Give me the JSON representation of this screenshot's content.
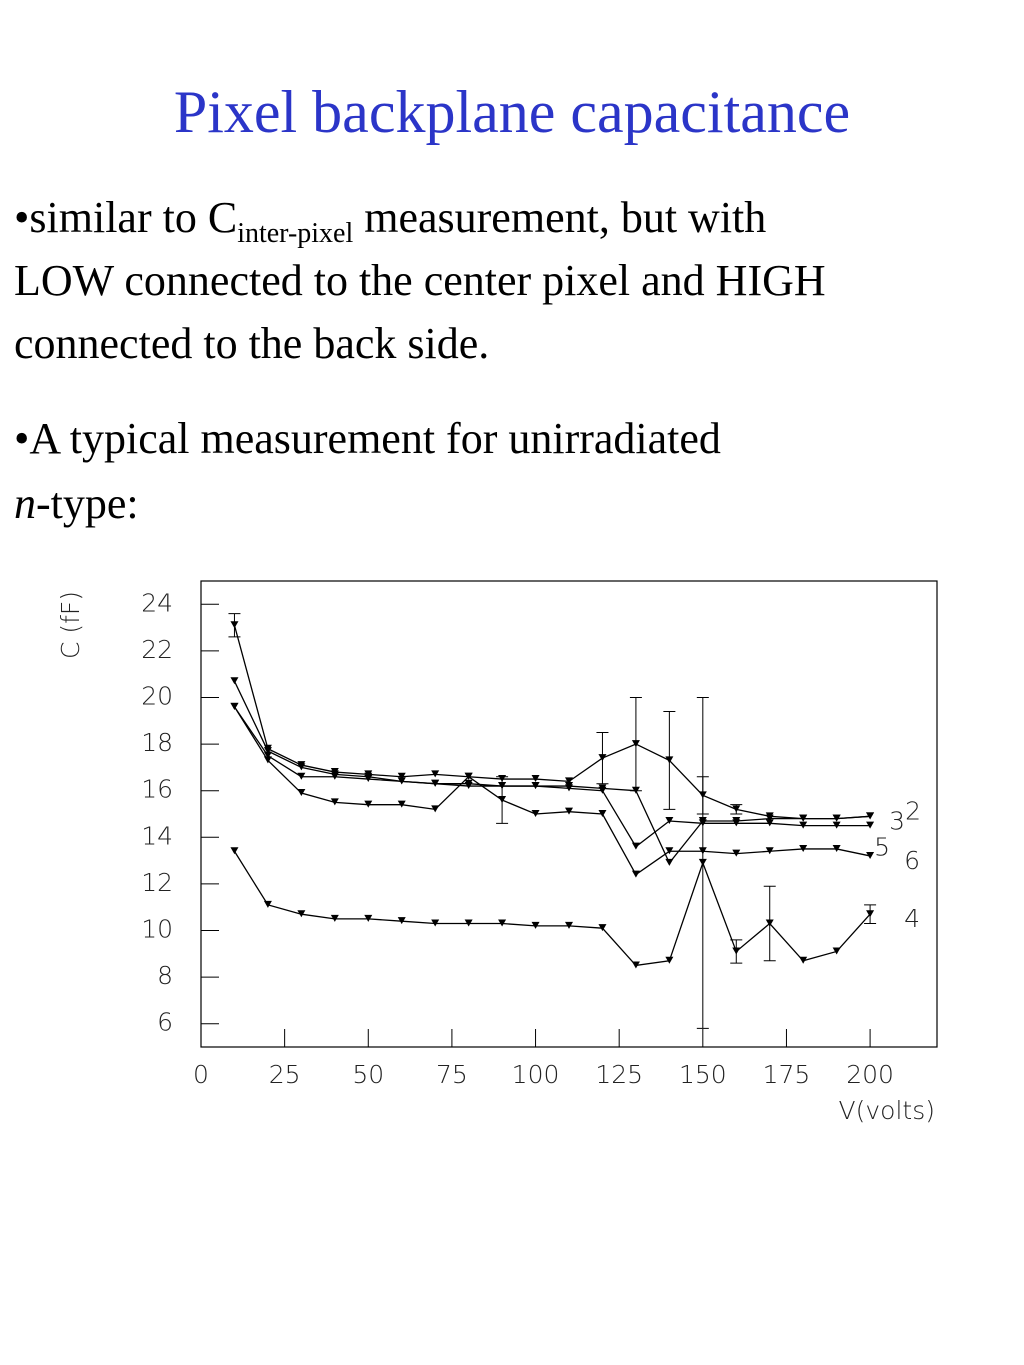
{
  "title": "Pixel backplane capacitance",
  "bullets": [
    {
      "text": "•similar to C",
      "sub": "inter-pixel",
      "rest": " measurement, but with",
      "line2": "LOW connected to the center pixel and HIGH",
      "line3": "connected to the back side."
    },
    {
      "text": "•A typical measurement for unirradiated",
      "italic": "n",
      "rest": "-type:"
    }
  ],
  "chart_data": {
    "type": "line",
    "ylabel": "C (fF)",
    "xlabel": "V(volts)",
    "x": [
      10,
      20,
      30,
      40,
      50,
      60,
      70,
      80,
      90,
      100,
      110,
      120,
      130,
      140,
      150,
      160,
      170,
      180,
      190,
      200
    ],
    "xlim": [
      0,
      220
    ],
    "xticks": [
      0,
      25,
      50,
      75,
      100,
      125,
      150,
      175,
      200
    ],
    "ylim": [
      5,
      25
    ],
    "yticks": [
      6,
      8,
      10,
      12,
      14,
      16,
      18,
      20,
      22,
      24
    ],
    "color": "#000000",
    "series": [
      {
        "name": "2",
        "values": [
          23.1,
          17.8,
          17.1,
          16.8,
          16.7,
          16.6,
          16.7,
          16.6,
          16.5,
          16.5,
          16.4,
          17.4,
          18.0,
          17.3,
          15.8,
          15.2,
          14.9,
          14.8,
          14.8,
          14.9
        ],
        "errors": [
          0.5,
          null,
          null,
          null,
          null,
          null,
          null,
          null,
          null,
          null,
          null,
          1.1,
          2.0,
          2.1,
          0.8,
          0.2,
          null,
          null,
          null,
          null
        ]
      },
      {
        "name": "3",
        "values": [
          20.7,
          17.7,
          17.0,
          16.7,
          16.6,
          16.4,
          16.3,
          16.3,
          16.2,
          16.2,
          16.2,
          16.1,
          16.0,
          12.9,
          14.7,
          14.7,
          14.8,
          14.8,
          14.8,
          14.9
        ],
        "errors": [
          null,
          null,
          null,
          null,
          null,
          null,
          null,
          null,
          null,
          null,
          null,
          null,
          null,
          null,
          null,
          null,
          null,
          null,
          null,
          null
        ]
      },
      {
        "name": "5",
        "values": [
          19.6,
          17.5,
          16.6,
          16.6,
          16.5,
          16.4,
          16.3,
          16.2,
          16.2,
          16.2,
          16.1,
          16.0,
          13.6,
          14.7,
          14.6,
          14.6,
          14.6,
          14.5,
          14.5,
          14.5
        ],
        "errors": [
          null,
          null,
          null,
          null,
          null,
          null,
          null,
          null,
          null,
          null,
          null,
          null,
          null,
          null,
          null,
          null,
          null,
          null,
          null,
          null
        ]
      },
      {
        "name": "6",
        "values": [
          19.6,
          17.3,
          15.9,
          15.5,
          15.4,
          15.4,
          15.2,
          16.6,
          15.6,
          15.0,
          15.1,
          15.0,
          12.4,
          13.4,
          13.4,
          13.3,
          13.4,
          13.5,
          13.5,
          13.2
        ],
        "errors": [
          null,
          null,
          null,
          null,
          null,
          null,
          null,
          null,
          1.0,
          null,
          null,
          null,
          null,
          null,
          null,
          null,
          null,
          null,
          null,
          null
        ]
      },
      {
        "name": "4",
        "values": [
          13.4,
          11.1,
          10.7,
          10.5,
          10.5,
          10.4,
          10.3,
          10.3,
          10.3,
          10.2,
          10.2,
          10.1,
          8.5,
          8.7,
          12.9,
          9.1,
          10.3,
          8.7,
          9.1,
          10.7
        ],
        "errors": [
          null,
          null,
          null,
          null,
          null,
          null,
          null,
          null,
          null,
          null,
          null,
          null,
          null,
          null,
          7.1,
          0.5,
          1.6,
          null,
          null,
          0.4
        ]
      }
    ]
  }
}
